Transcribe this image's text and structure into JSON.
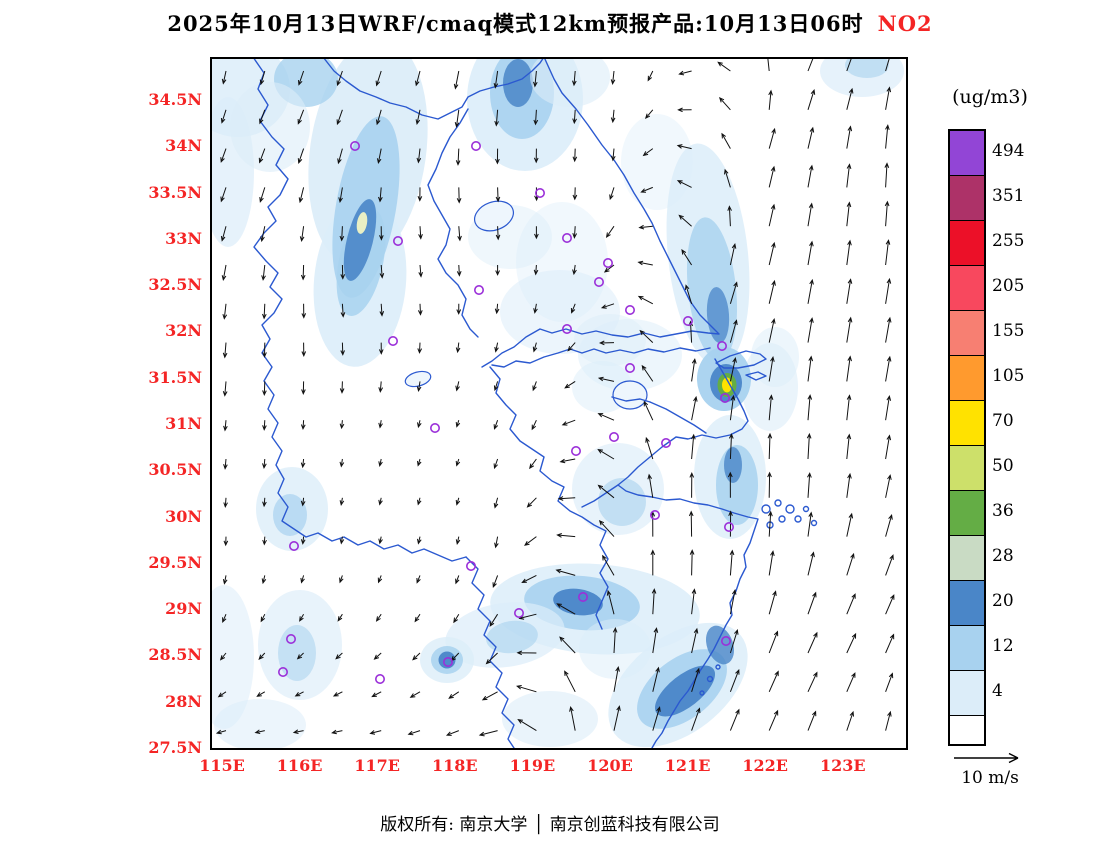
{
  "title": {
    "main": "2025年10月13日WRF/cmaq模式12km预报产品:10月13日06时",
    "species": "NO2"
  },
  "axes": {
    "label_color": "#f42525",
    "y_ticks": [
      "34.5N",
      "34N",
      "33.5N",
      "33N",
      "32.5N",
      "32N",
      "31.5N",
      "31N",
      "30.5N",
      "30N",
      "29.5N",
      "29N",
      "28.5N",
      "28N",
      "27.5N"
    ],
    "x_ticks": [
      "115E",
      "116E",
      "117E",
      "118E",
      "119E",
      "120E",
      "121E",
      "122E",
      "123E"
    ]
  },
  "colorbar": {
    "unit": "(ug/m3)",
    "labels": [
      "494",
      "351",
      "255",
      "205",
      "155",
      "105",
      "70",
      "50",
      "36",
      "28",
      "20",
      "12",
      "4"
    ],
    "colors_top_to_bottom": [
      "#9245d6",
      "#ad3268",
      "#ec1028",
      "#f8485e",
      "#f77f72",
      "#ff9a2e",
      "#ffe200",
      "#cde06a",
      "#64ad45",
      "#c9dbc4",
      "#4a86c8",
      "#a8d2ef",
      "#dcedf9"
    ],
    "bottom_color": "#ffffff"
  },
  "wind": {
    "reference_label": "10 m/s",
    "grid_step": 38.8,
    "color": "#111111"
  },
  "footer": {
    "left": "版权所有: 南京大学",
    "separator": "│",
    "right": "南京创蓝科技有限公司"
  },
  "map": {
    "boundary_color": "#2b59d0",
    "station_color": "#9b30d9",
    "stations": [
      [
        145,
        89
      ],
      [
        266,
        89
      ],
      [
        330,
        136
      ],
      [
        188,
        184
      ],
      [
        357,
        181
      ],
      [
        398,
        206
      ],
      [
        269,
        233
      ],
      [
        389,
        225
      ],
      [
        420,
        253
      ],
      [
        478,
        264
      ],
      [
        357,
        272
      ],
      [
        183,
        284
      ],
      [
        420,
        311
      ],
      [
        512,
        289
      ],
      [
        515,
        341
      ],
      [
        225,
        371
      ],
      [
        404,
        380
      ],
      [
        456,
        386
      ],
      [
        366,
        394
      ],
      [
        445,
        458
      ],
      [
        519,
        470
      ],
      [
        84,
        489
      ],
      [
        261,
        509
      ],
      [
        373,
        540
      ],
      [
        309,
        556
      ],
      [
        516,
        584
      ],
      [
        81,
        582
      ],
      [
        238,
        605
      ],
      [
        170,
        622
      ],
      [
        73,
        615
      ]
    ],
    "blobs": [
      [
        158,
        95,
        58,
        115,
        8,
        "#dcedf9",
        0.95
      ],
      [
        150,
        225,
        46,
        85,
        5,
        "#dcedf9",
        0.9
      ],
      [
        156,
        150,
        30,
        92,
        10,
        "#a8d2ef",
        0.9
      ],
      [
        151,
        205,
        22,
        55,
        12,
        "#a8d2ef",
        0.85
      ],
      [
        150,
        183,
        13,
        42,
        14,
        "#4a86c8",
        0.9
      ],
      [
        152,
        166,
        5,
        11,
        10,
        "#e9efc4",
        1
      ],
      [
        28,
        32,
        52,
        48,
        0,
        "#dcedf9",
        0.85
      ],
      [
        96,
        22,
        32,
        28,
        0,
        "#a8d2ef",
        0.8
      ],
      [
        18,
        115,
        26,
        75,
        0,
        "#dcedf9",
        0.7
      ],
      [
        60,
        70,
        40,
        45,
        0,
        "#dcedf9",
        0.6
      ],
      [
        315,
        42,
        58,
        72,
        0,
        "#dcedf9",
        0.9
      ],
      [
        312,
        36,
        32,
        46,
        0,
        "#a8d2ef",
        0.9
      ],
      [
        308,
        26,
        15,
        24,
        0,
        "#4a86c8",
        0.85
      ],
      [
        360,
        20,
        40,
        30,
        0,
        "#dcedf9",
        0.6
      ],
      [
        350,
        255,
        60,
        42,
        0,
        "#dcedf9",
        0.55
      ],
      [
        420,
        298,
        52,
        36,
        0,
        "#dcedf9",
        0.5
      ],
      [
        300,
        180,
        42,
        32,
        0,
        "#dcedf9",
        0.45
      ],
      [
        352,
        205,
        46,
        60,
        0,
        "#dcedf9",
        0.4
      ],
      [
        400,
        283,
        36,
        26,
        0,
        "#dcedf9",
        0.45
      ],
      [
        447,
        105,
        36,
        48,
        0,
        "#dcedf9",
        0.4
      ],
      [
        498,
        198,
        40,
        112,
        -6,
        "#dcedf9",
        0.85
      ],
      [
        502,
        232,
        24,
        72,
        -6,
        "#a8d2ef",
        0.8
      ],
      [
        508,
        258,
        11,
        28,
        -4,
        "#4a86c8",
        0.75
      ],
      [
        560,
        330,
        28,
        44,
        0,
        "#dcedf9",
        0.6
      ],
      [
        514,
        322,
        27,
        32,
        0,
        "#a8d2ef",
        0.95
      ],
      [
        516,
        326,
        16,
        19,
        0,
        "#4a86c8",
        0.95
      ],
      [
        517,
        328,
        9.5,
        12,
        0,
        "#64ad45",
        1
      ],
      [
        517,
        328,
        5,
        7.5,
        0,
        "#ffe200",
        1
      ],
      [
        520,
        420,
        36,
        62,
        0,
        "#dcedf9",
        0.8
      ],
      [
        527,
        428,
        21,
        40,
        0,
        "#a8d2ef",
        0.85
      ],
      [
        523,
        408,
        9,
        18,
        0,
        "#4a86c8",
        0.8
      ],
      [
        408,
        432,
        46,
        46,
        0,
        "#dcedf9",
        0.65
      ],
      [
        412,
        445,
        24,
        24,
        0,
        "#a8d2ef",
        0.6
      ],
      [
        392,
        330,
        30,
        26,
        0,
        "#dcedf9",
        0.5
      ],
      [
        385,
        552,
        105,
        45,
        4,
        "#dcedf9",
        0.85
      ],
      [
        372,
        546,
        58,
        27,
        5,
        "#a8d2ef",
        0.9
      ],
      [
        368,
        545,
        25,
        13,
        8,
        "#4a86c8",
        0.95
      ],
      [
        295,
        578,
        60,
        32,
        -8,
        "#dcedf9",
        0.7
      ],
      [
        302,
        580,
        26,
        16,
        -8,
        "#a8d2ef",
        0.6
      ],
      [
        237,
        603,
        27,
        23,
        0,
        "#dcedf9",
        0.8
      ],
      [
        237,
        603,
        16,
        14,
        0,
        "#a8d2ef",
        0.85
      ],
      [
        237,
        603,
        8.5,
        8.5,
        0,
        "#4a86c8",
        0.95
      ],
      [
        468,
        628,
        80,
        48,
        -38,
        "#dcedf9",
        0.85
      ],
      [
        472,
        632,
        52,
        30,
        -38,
        "#a8d2ef",
        0.9
      ],
      [
        475,
        634,
        36,
        16,
        -38,
        "#4a86c8",
        0.95
      ],
      [
        510,
        588,
        13,
        20,
        -20,
        "#4a86c8",
        0.8
      ],
      [
        82,
        452,
        36,
        42,
        0,
        "#dcedf9",
        0.8
      ],
      [
        80,
        458,
        17,
        21,
        0,
        "#a8d2ef",
        0.7
      ],
      [
        90,
        588,
        42,
        55,
        0,
        "#dcedf9",
        0.65
      ],
      [
        87,
        596,
        19,
        28,
        0,
        "#a8d2ef",
        0.55
      ],
      [
        14,
        600,
        30,
        72,
        0,
        "#dcedf9",
        0.55
      ],
      [
        50,
        668,
        46,
        26,
        0,
        "#dcedf9",
        0.55
      ],
      [
        340,
        662,
        48,
        28,
        0,
        "#dcedf9",
        0.6
      ],
      [
        405,
        592,
        36,
        30,
        0,
        "#dcedf9",
        0.5
      ],
      [
        652,
        14,
        42,
        26,
        0,
        "#dcedf9",
        0.7
      ],
      [
        657,
        8,
        22,
        13,
        0,
        "#a8d2ef",
        0.6
      ],
      [
        565,
        300,
        24,
        30,
        0,
        "#dcedf9",
        0.5
      ]
    ]
  },
  "chart_data": {
    "type": "heatmap",
    "subtype": "geographic_contour_with_wind_vectors",
    "title": "2025年10月13日WRF/cmaq模式12km预报产品:10月13日06时 NO2",
    "species": "NO2",
    "unit": "ug/m3",
    "x_axis": {
      "kind": "longitude",
      "ticks": [
        "115E",
        "116E",
        "117E",
        "118E",
        "119E",
        "120E",
        "121E",
        "122E",
        "123E"
      ],
      "range": [
        115,
        123.8
      ]
    },
    "y_axis": {
      "kind": "latitude",
      "ticks": [
        "34.5N",
        "34N",
        "33.5N",
        "33N",
        "32.5N",
        "32N",
        "31.5N",
        "31N",
        "30.5N",
        "30N",
        "29.5N",
        "29N",
        "28.5N",
        "28N",
        "27.5N"
      ],
      "range": [
        27.5,
        35.0
      ]
    },
    "colorbar_levels_low_to_high": [
      4,
      12,
      20,
      28,
      36,
      50,
      70,
      105,
      155,
      205,
      255,
      351,
      494
    ],
    "colorbar_colors_low_to_high": [
      "#ffffff",
      "#dcedf9",
      "#a8d2ef",
      "#4a86c8",
      "#c9dbc4",
      "#64ad45",
      "#cde06a",
      "#ffe200",
      "#ff9a2e",
      "#f77f72",
      "#f8485e",
      "#ec1028",
      "#ad3268",
      "#9245d6"
    ],
    "wind_reference": "10 m/s",
    "features": [
      {
        "name": "northwest-plume",
        "lon": 116.9,
        "lat": 33.2,
        "peak_range_ugm3": "36-50"
      },
      {
        "name": "shanghai-hotspot",
        "lon": 121.5,
        "lat": 31.45,
        "peak_range_ugm3": "70-105"
      },
      {
        "name": "jiangsu-coast-band",
        "lon": 121.3,
        "lat": 32.5,
        "peak_range_ugm3": "20-28"
      },
      {
        "name": "central-zhejiang-plume",
        "lon": 119.5,
        "lat": 29.1,
        "peak_range_ugm3": "20-28"
      },
      {
        "name": "zhejiang-coast-band",
        "lon": 121.0,
        "lat": 28.2,
        "peak_range_ugm3": "20-28"
      },
      {
        "name": "north-119E-plume",
        "lon": 119.0,
        "lat": 34.8,
        "peak_range_ugm3": "20-28"
      }
    ],
    "wind_pattern": "northerly (downward) vectors over the western/inland half, turning southwesterly in a convergence band mid-domain, southerly to southwesterly (upward) vectors over the eastern sea area"
  }
}
